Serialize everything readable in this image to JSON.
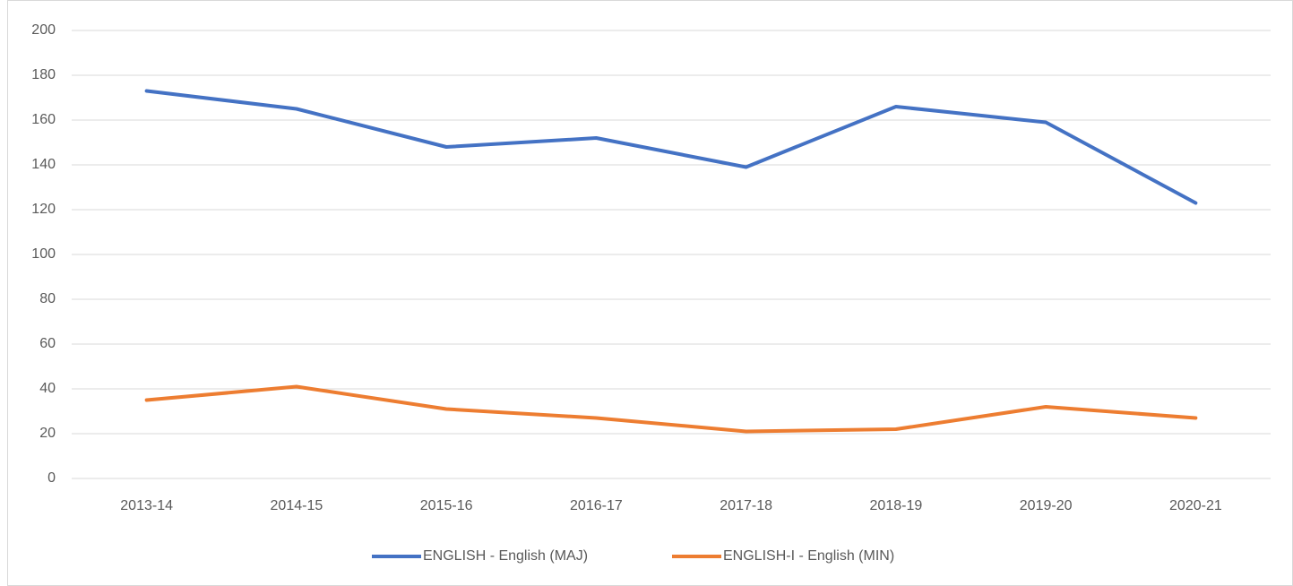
{
  "chart_data": {
    "type": "line",
    "categories": [
      "2013-14",
      "2014-15",
      "2015-16",
      "2016-17",
      "2017-18",
      "2018-19",
      "2019-20",
      "2020-21"
    ],
    "series": [
      {
        "name": "ENGLISH - English (MAJ)",
        "color": "#4472c4",
        "values": [
          173,
          165,
          148,
          152,
          139,
          166,
          159,
          123
        ]
      },
      {
        "name": "ENGLISH-I - English (MIN)",
        "color": "#ed7d31",
        "values": [
          35,
          41,
          31,
          27,
          21,
          22,
          32,
          27
        ]
      }
    ],
    "ylim": [
      0,
      200
    ],
    "yticks": [
      0,
      20,
      40,
      60,
      80,
      100,
      120,
      140,
      160,
      180,
      200
    ],
    "grid": true,
    "legend": "bottom"
  }
}
